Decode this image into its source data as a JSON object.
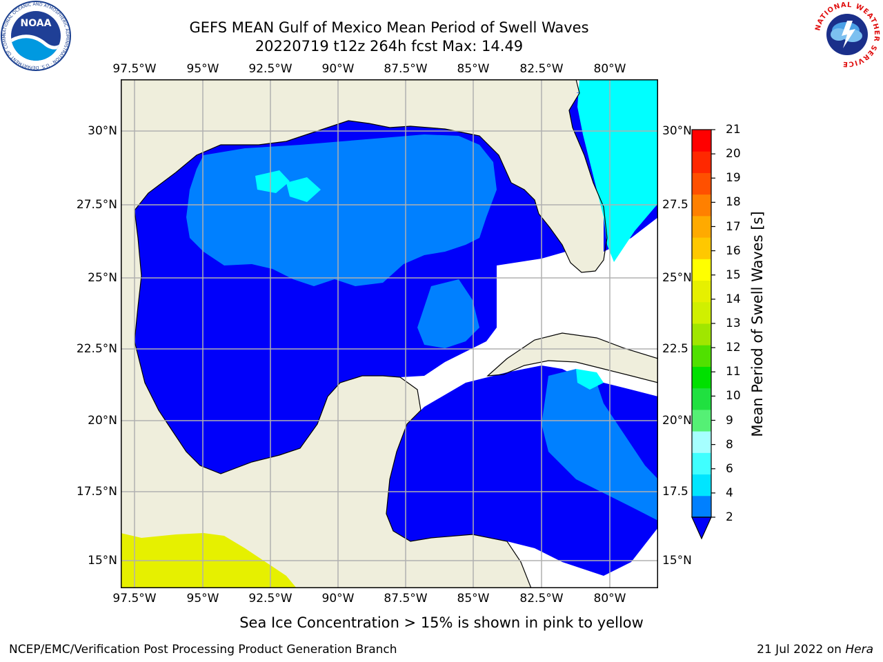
{
  "header": {
    "title": "GEFS MEAN Gulf of Mexico Mean Period of Swell Waves",
    "subtitle": "20220719 t12z 264h fcst   Max: 14.49"
  },
  "axes": {
    "lon_labels": [
      "97.5°W",
      "95°W",
      "92.5°W",
      "90°W",
      "87.5°W",
      "85°W",
      "82.5°W",
      "80°W"
    ],
    "lat_labels_left": [
      "30°N",
      "27.5°N",
      "25°N",
      "22.5°N",
      "20°N",
      "17.5°N",
      "15°N"
    ],
    "lat_labels_right": [
      "30°N",
      "27.5",
      "25°N",
      "22.5",
      "20°N",
      "17.5",
      "15°N"
    ]
  },
  "map_data": {
    "lon_range": [
      -98,
      -79
    ],
    "lat_range": [
      14,
      32
    ],
    "gridlines": true,
    "colors": {
      "land": "#efeedc",
      "ocean_2_4": "#0000fa",
      "ocean_4_6": "#0080ff",
      "ocean_6_8": "#00ffff",
      "ice": "#e6f000"
    }
  },
  "colorbar": {
    "title": "Mean Period of Swell Waves [s]",
    "ticks": [
      "2",
      "4",
      "6",
      "8",
      "9",
      "10",
      "11",
      "12",
      "13",
      "14",
      "15",
      "16",
      "17",
      "18",
      "19",
      "20",
      "21"
    ],
    "bands": [
      "#0080ff",
      "#00e5ff",
      "#40ffff",
      "#a6ffff",
      "#55f075",
      "#20e040",
      "#00e000",
      "#50e000",
      "#a0e600",
      "#d0f000",
      "#e6f000",
      "#ffff00",
      "#ffc800",
      "#ffaa00",
      "#ff8000",
      "#ff5000",
      "#ff2800",
      "#ff0000"
    ],
    "extend_color": "#0000fa"
  },
  "footer": {
    "note": "Sea Ice Concentration > 15% is shown in pink to yellow",
    "credit": "NCEP/EMC/Verification Post Processing Product Generation Branch",
    "date_prefix": "21 Jul 2022 on ",
    "machine": "Hera"
  },
  "logos": {
    "noaa": "NOAA",
    "noaa_ring": "NATIONAL OCEANIC AND ATMOSPHERIC ADMINISTRATION · U.S. DEPARTMENT OF COMMERCE",
    "nws_ring": "NATIONAL WEATHER SERVICE"
  }
}
